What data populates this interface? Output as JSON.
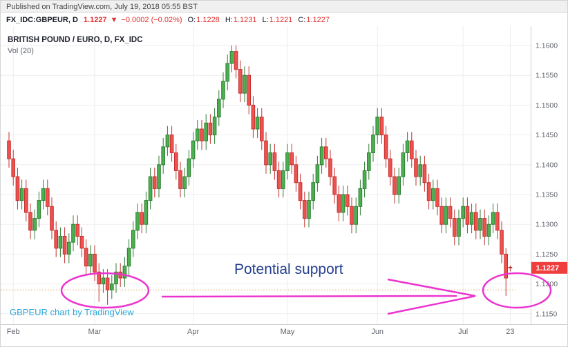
{
  "header": {
    "published": "Published on TradingView.com, July 19, 2018 05:55 BST"
  },
  "symbol_bar": {
    "symbol": "FX_IDC:GBPEUR, D",
    "last_price": "1.1227",
    "direction_arrow": "▼",
    "change": "−0.0002 (−0.02%)",
    "open_label": "O:",
    "open": "1.1228",
    "high_label": "H:",
    "high": "1.1231",
    "low_label": "L:",
    "low": "1.1221",
    "close_label": "C:",
    "close": "1.1227"
  },
  "annotations": {
    "support_text": "Potential support"
  },
  "watermark": "GBPEUR chart by TradingView",
  "colors": {
    "up": "#4caf50",
    "up_border": "#2e7d32",
    "down": "#ef5350",
    "down_border": "#c62f2f",
    "grid": "#ededed",
    "axis_border": "#c9ccd1",
    "support_line": "#e2a355",
    "price_tag_bg": "#ef3e3e",
    "annotation": "#ec33cf",
    "annotation_text": "#24408e",
    "negative": "#e03131",
    "watermark": "#2ba8d9"
  },
  "chart_data": {
    "type": "candlestick",
    "symbol": "GBPEUR",
    "exchange": "FX_IDC",
    "timeframe": "D",
    "title": "BRITISH POUND / EURO, D, FX_IDC",
    "indicator": "Vol (20)",
    "last_price": "1.1227",
    "support_level": 1.119,
    "y_axis": {
      "ticks": [
        "1.1600",
        "1.1550",
        "1.1500",
        "1.1450",
        "1.1400",
        "1.1350",
        "1.1300",
        "1.1250",
        "1.1200",
        "1.1150"
      ],
      "min": 1.1135,
      "max": 1.1619
    },
    "x_axis": {
      "months": [
        {
          "label": "Feb",
          "bar": 1
        },
        {
          "label": "Mar",
          "bar": 20
        },
        {
          "label": "Apr",
          "bar": 43
        },
        {
          "label": "May",
          "bar": 65
        },
        {
          "label": "Jun",
          "bar": 86
        },
        {
          "label": "Jul",
          "bar": 106
        },
        {
          "label": "23",
          "bar": 117
        }
      ]
    },
    "ohlc_format": [
      "open",
      "high",
      "low",
      "close"
    ],
    "candles": [
      [
        1.144,
        1.1455,
        1.1395,
        1.141
      ],
      [
        1.141,
        1.1425,
        1.1365,
        1.138
      ],
      [
        1.138,
        1.1395,
        1.1325,
        1.134
      ],
      [
        1.134,
        1.1375,
        1.1325,
        1.136
      ],
      [
        1.136,
        1.1375,
        1.1305,
        1.132
      ],
      [
        1.132,
        1.1335,
        1.1275,
        1.129
      ],
      [
        1.129,
        1.1325,
        1.1275,
        1.131
      ],
      [
        1.131,
        1.1355,
        1.1295,
        1.134
      ],
      [
        1.134,
        1.1375,
        1.1325,
        1.136
      ],
      [
        1.136,
        1.1375,
        1.1315,
        1.133
      ],
      [
        1.133,
        1.1345,
        1.1275,
        1.129
      ],
      [
        1.129,
        1.1305,
        1.1245,
        1.126
      ],
      [
        1.126,
        1.1295,
        1.1245,
        1.128
      ],
      [
        1.128,
        1.1295,
        1.1235,
        1.125
      ],
      [
        1.125,
        1.1285,
        1.1235,
        1.127
      ],
      [
        1.127,
        1.1315,
        1.1255,
        1.13
      ],
      [
        1.13,
        1.1315,
        1.1265,
        1.128
      ],
      [
        1.128,
        1.1295,
        1.1245,
        1.126
      ],
      [
        1.126,
        1.1275,
        1.1215,
        1.123
      ],
      [
        1.123,
        1.1265,
        1.1215,
        1.125
      ],
      [
        1.125,
        1.1265,
        1.1205,
        1.122
      ],
      [
        1.122,
        1.1235,
        1.117,
        1.12
      ],
      [
        1.12,
        1.1225,
        1.1185,
        1.121
      ],
      [
        1.121,
        1.1225,
        1.1165,
        1.119
      ],
      [
        1.119,
        1.1215,
        1.1175,
        1.12
      ],
      [
        1.12,
        1.1235,
        1.1185,
        1.122
      ],
      [
        1.122,
        1.1235,
        1.1195,
        1.121
      ],
      [
        1.121,
        1.1245,
        1.1195,
        1.123
      ],
      [
        1.123,
        1.1275,
        1.1215,
        1.126
      ],
      [
        1.126,
        1.1305,
        1.1245,
        1.129
      ],
      [
        1.129,
        1.1335,
        1.1275,
        1.132
      ],
      [
        1.132,
        1.1335,
        1.1285,
        1.13
      ],
      [
        1.13,
        1.1355,
        1.1285,
        1.134
      ],
      [
        1.134,
        1.1395,
        1.1325,
        1.138
      ],
      [
        1.138,
        1.1395,
        1.1345,
        1.136
      ],
      [
        1.136,
        1.1415,
        1.1345,
        1.14
      ],
      [
        1.14,
        1.1445,
        1.1385,
        1.143
      ],
      [
        1.143,
        1.1465,
        1.1415,
        1.145
      ],
      [
        1.145,
        1.1465,
        1.1405,
        1.142
      ],
      [
        1.142,
        1.1435,
        1.1375,
        1.139
      ],
      [
        1.139,
        1.1405,
        1.1345,
        1.136
      ],
      [
        1.136,
        1.1395,
        1.1345,
        1.138
      ],
      [
        1.138,
        1.1425,
        1.1365,
        1.141
      ],
      [
        1.141,
        1.1455,
        1.1395,
        1.144
      ],
      [
        1.144,
        1.1475,
        1.1425,
        1.146
      ],
      [
        1.146,
        1.1475,
        1.1425,
        1.144
      ],
      [
        1.144,
        1.1485,
        1.1425,
        1.147
      ],
      [
        1.147,
        1.1485,
        1.1435,
        1.145
      ],
      [
        1.145,
        1.1495,
        1.1435,
        1.148
      ],
      [
        1.148,
        1.1525,
        1.1465,
        1.151
      ],
      [
        1.151,
        1.1555,
        1.1495,
        1.154
      ],
      [
        1.154,
        1.1585,
        1.1525,
        1.157
      ],
      [
        1.157,
        1.16,
        1.1555,
        1.159
      ],
      [
        1.159,
        1.16,
        1.1545,
        1.156
      ],
      [
        1.156,
        1.1575,
        1.1505,
        1.152
      ],
      [
        1.152,
        1.1565,
        1.1505,
        1.155
      ],
      [
        1.155,
        1.1565,
        1.1485,
        1.15
      ],
      [
        1.15,
        1.1515,
        1.1445,
        1.146
      ],
      [
        1.146,
        1.1495,
        1.1445,
        1.148
      ],
      [
        1.148,
        1.1495,
        1.1425,
        1.144
      ],
      [
        1.144,
        1.1455,
        1.1385,
        1.14
      ],
      [
        1.14,
        1.1435,
        1.1385,
        1.142
      ],
      [
        1.142,
        1.1435,
        1.1375,
        1.139
      ],
      [
        1.139,
        1.1405,
        1.1345,
        1.136
      ],
      [
        1.136,
        1.1405,
        1.1345,
        1.139
      ],
      [
        1.139,
        1.1435,
        1.1375,
        1.142
      ],
      [
        1.142,
        1.1435,
        1.1385,
        1.14
      ],
      [
        1.14,
        1.1415,
        1.1355,
        1.137
      ],
      [
        1.137,
        1.1385,
        1.1325,
        1.134
      ],
      [
        1.134,
        1.1355,
        1.1295,
        1.131
      ],
      [
        1.131,
        1.1355,
        1.1295,
        1.134
      ],
      [
        1.134,
        1.1385,
        1.1325,
        1.137
      ],
      [
        1.137,
        1.1415,
        1.1355,
        1.14
      ],
      [
        1.14,
        1.1445,
        1.1385,
        1.143
      ],
      [
        1.143,
        1.1445,
        1.1395,
        1.141
      ],
      [
        1.141,
        1.1425,
        1.1365,
        1.138
      ],
      [
        1.138,
        1.1395,
        1.1335,
        1.135
      ],
      [
        1.135,
        1.1365,
        1.1305,
        1.132
      ],
      [
        1.132,
        1.1365,
        1.1305,
        1.135
      ],
      [
        1.135,
        1.1365,
        1.1315,
        1.133
      ],
      [
        1.133,
        1.1345,
        1.1285,
        1.13
      ],
      [
        1.13,
        1.1345,
        1.1285,
        1.133
      ],
      [
        1.133,
        1.1375,
        1.1315,
        1.136
      ],
      [
        1.136,
        1.1405,
        1.1345,
        1.139
      ],
      [
        1.139,
        1.1435,
        1.1375,
        1.142
      ],
      [
        1.142,
        1.1465,
        1.1405,
        1.145
      ],
      [
        1.145,
        1.1495,
        1.1435,
        1.148
      ],
      [
        1.148,
        1.1495,
        1.1435,
        1.145
      ],
      [
        1.145,
        1.1465,
        1.1395,
        1.141
      ],
      [
        1.141,
        1.1425,
        1.1365,
        1.138
      ],
      [
        1.138,
        1.1395,
        1.1335,
        1.135
      ],
      [
        1.135,
        1.1395,
        1.1335,
        1.138
      ],
      [
        1.138,
        1.1435,
        1.1365,
        1.142
      ],
      [
        1.142,
        1.1455,
        1.1405,
        1.144
      ],
      [
        1.144,
        1.1455,
        1.1395,
        1.141
      ],
      [
        1.141,
        1.1425,
        1.1365,
        1.138
      ],
      [
        1.138,
        1.1415,
        1.1365,
        1.14
      ],
      [
        1.14,
        1.1415,
        1.1355,
        1.137
      ],
      [
        1.137,
        1.1385,
        1.1325,
        1.134
      ],
      [
        1.134,
        1.1375,
        1.1325,
        1.136
      ],
      [
        1.136,
        1.1375,
        1.1315,
        1.133
      ],
      [
        1.133,
        1.1345,
        1.1285,
        1.13
      ],
      [
        1.13,
        1.1345,
        1.1285,
        1.133
      ],
      [
        1.133,
        1.1345,
        1.1295,
        1.131
      ],
      [
        1.131,
        1.1325,
        1.1265,
        1.128
      ],
      [
        1.128,
        1.1325,
        1.1265,
        1.131
      ],
      [
        1.131,
        1.1345,
        1.1295,
        1.133
      ],
      [
        1.133,
        1.1345,
        1.1285,
        1.13
      ],
      [
        1.13,
        1.1335,
        1.1285,
        1.132
      ],
      [
        1.132,
        1.1335,
        1.1275,
        1.129
      ],
      [
        1.129,
        1.1325,
        1.1275,
        1.131
      ],
      [
        1.131,
        1.1325,
        1.1265,
        1.128
      ],
      [
        1.128,
        1.1315,
        1.1265,
        1.13
      ],
      [
        1.13,
        1.1335,
        1.1285,
        1.132
      ],
      [
        1.132,
        1.1335,
        1.1275,
        1.129
      ],
      [
        1.129,
        1.1305,
        1.1235,
        1.125
      ],
      [
        1.125,
        1.126,
        1.118,
        1.121
      ],
      [
        1.1228,
        1.1231,
        1.1221,
        1.1227
      ]
    ]
  }
}
